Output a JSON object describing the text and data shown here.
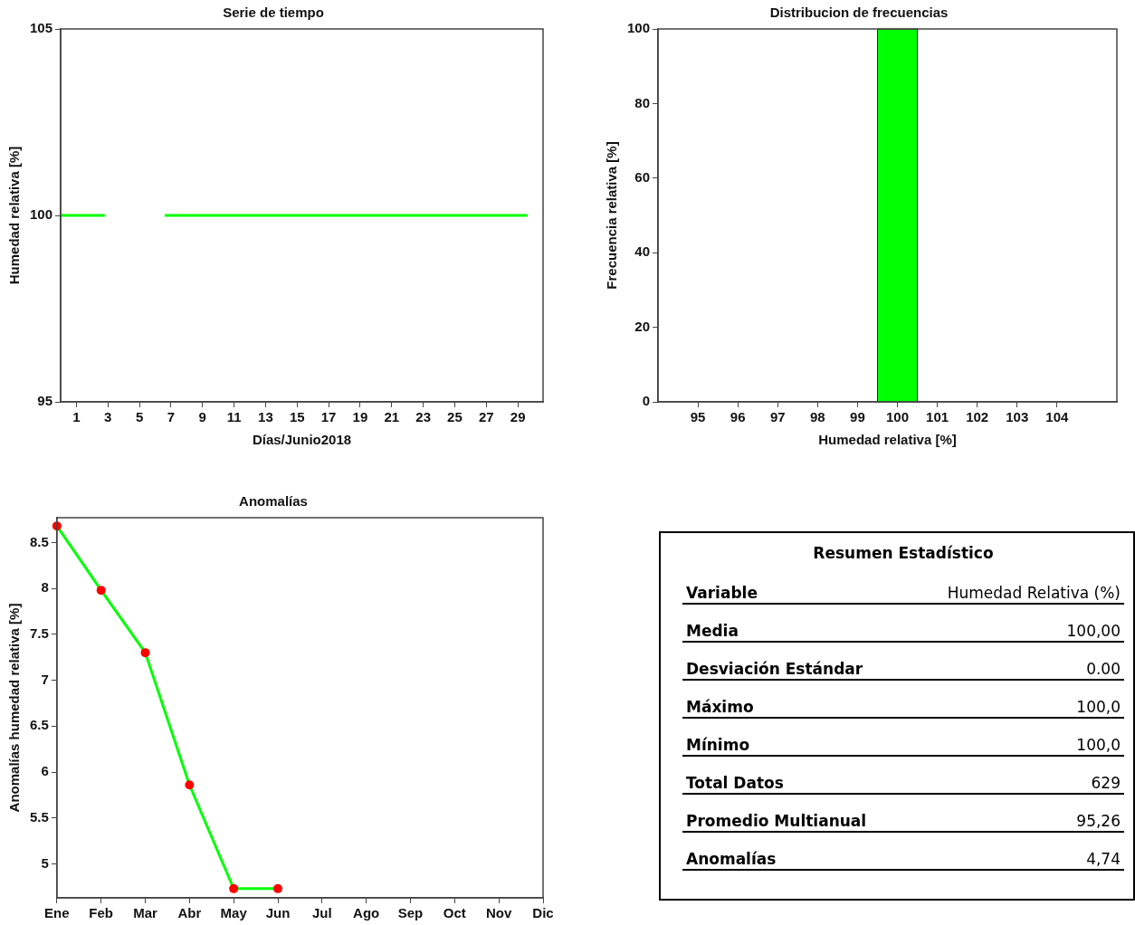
{
  "chart_data": [
    {
      "type": "line",
      "title": "Serie de tiempo",
      "xlabel": "Días/Junio2018",
      "ylabel": "Humedad relativa [%]",
      "x": [
        0,
        2.8,
        4.5,
        6.6,
        29.6
      ],
      "series": [
        {
          "color": "#00ff00",
          "values": [
            100,
            100,
            null,
            100,
            100
          ]
        }
      ],
      "xlim": [
        0,
        30.6
      ],
      "xticks": [
        1,
        3,
        5,
        7,
        9,
        11,
        13,
        15,
        17,
        19,
        21,
        23,
        25,
        27,
        29
      ],
      "ylim": [
        95,
        105
      ],
      "yticks": [
        95,
        100,
        105
      ],
      "marker": "none"
    },
    {
      "type": "histogram",
      "title": "Distribucion de frecuencias",
      "xlabel": "Humedad relativa [%]",
      "ylabel": "Frecuencia relativa [%]",
      "bins": [
        99.5,
        100.5
      ],
      "values": [
        100
      ],
      "color": "#00ff00",
      "xlim": [
        94,
        105.5
      ],
      "xticks": [
        95,
        96,
        97,
        98,
        99,
        100,
        101,
        102,
        103,
        104
      ],
      "ylim": [
        0,
        100
      ],
      "yticks": [
        0,
        20,
        40,
        60,
        80,
        100
      ]
    },
    {
      "type": "line",
      "title": "Anomalías",
      "ylabel": "Anomalías humedad relativa [%]",
      "categories": [
        "Ene",
        "Feb",
        "Mar",
        "Abr",
        "May",
        "Jun",
        "Jul",
        "Ago",
        "Sep",
        "Oct",
        "Nov",
        "Dic"
      ],
      "series": [
        {
          "color": "#00ff00",
          "values": [
            8.68,
            7.98,
            7.3,
            5.86,
            4.73,
            4.73,
            null,
            null,
            null,
            null,
            null,
            null
          ]
        }
      ],
      "ylim": [
        4.63,
        8.77
      ],
      "yticks": [
        5,
        5.5,
        6,
        6.5,
        7,
        7.5,
        8,
        8.5
      ],
      "marker": "circle"
    },
    {
      "type": "other",
      "title": "Resumen Estadístico",
      "annotations": [
        "Variable",
        "Humedad Relativa (%)",
        "Media",
        "100,00",
        "Desviación Estándar",
        "0.00",
        "Máximo",
        "100,0",
        "Mínimo",
        "100,0",
        "Total Datos",
        "629",
        "Promedio Multianual",
        "95,26",
        "Anomalías",
        "4,74"
      ]
    }
  ]
}
